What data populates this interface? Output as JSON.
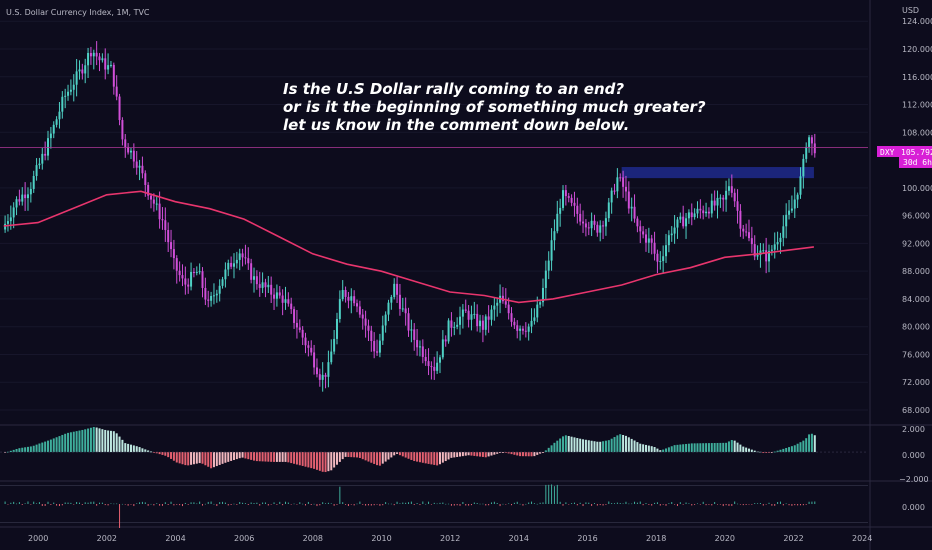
{
  "header": {
    "title": "U.S. Dollar Currency Index, 1M, TVC"
  },
  "annotation": {
    "lines": [
      "Is the U.S Dollar rally coming to an end?",
      "or is it the beginning of something much greater?",
      "let us know in the comment down below."
    ]
  },
  "price_axis": {
    "unit": "USD",
    "ticks": [
      "124.000",
      "120.000",
      "116.000",
      "112.000",
      "108.000",
      "100.000",
      "96.000",
      "92.000",
      "88.000",
      "84.000",
      "80.000",
      "76.000",
      "72.000",
      "68.000"
    ]
  },
  "time_axis": {
    "ticks": [
      "2000",
      "2002",
      "2004",
      "2006",
      "2008",
      "2010",
      "2012",
      "2014",
      "2016",
      "2018",
      "2020",
      "2022",
      "2024"
    ]
  },
  "last_price": {
    "symbol": "DXY",
    "value": "105.792",
    "countdown": "30d 6h"
  },
  "osc1": {
    "ticks": [
      "2.000",
      "0.000",
      "−2.000"
    ]
  },
  "osc2": {
    "ticks": [
      "0.000"
    ]
  },
  "colors": {
    "background": "#0d0c1d",
    "up": "#4fd1c5",
    "down": "#d14fd8",
    "ma": "#e8356d",
    "zone": "#1e2a8c",
    "hist_pos": "#3fae9c",
    "hist_neg": "#e26070",
    "hline": "#b0389a"
  },
  "chart_data": {
    "type": "candlestick",
    "symbol": "DXY",
    "timeframe": "1M",
    "x_range": [
      1999,
      2022.6
    ],
    "y_range": [
      67,
      125
    ],
    "last_close": 105.792,
    "anchors": [
      [
        1999.0,
        94
      ],
      [
        1999.4,
        98
      ],
      [
        1999.8,
        100
      ],
      [
        2000.3,
        106
      ],
      [
        2000.8,
        113
      ],
      [
        2001.3,
        117
      ],
      [
        2001.6,
        120
      ],
      [
        2001.9,
        118
      ],
      [
        2002.2,
        117
      ],
      [
        2002.5,
        107
      ],
      [
        2002.9,
        104
      ],
      [
        2003.3,
        99
      ],
      [
        2003.7,
        95
      ],
      [
        2004.0,
        89
      ],
      [
        2004.3,
        86
      ],
      [
        2004.7,
        88
      ],
      [
        2005.0,
        83
      ],
      [
        2005.4,
        87
      ],
      [
        2005.9,
        91
      ],
      [
        2006.3,
        87
      ],
      [
        2006.8,
        85
      ],
      [
        2007.2,
        84
      ],
      [
        2007.6,
        80
      ],
      [
        2008.0,
        76
      ],
      [
        2008.3,
        72.5
      ],
      [
        2008.5,
        74
      ],
      [
        2008.9,
        85
      ],
      [
        2009.3,
        84
      ],
      [
        2009.9,
        76
      ],
      [
        2010.4,
        86
      ],
      [
        2010.9,
        79
      ],
      [
        2011.3,
        76
      ],
      [
        2011.6,
        74
      ],
      [
        2012.0,
        80
      ],
      [
        2012.5,
        82
      ],
      [
        2013.0,
        80
      ],
      [
        2013.5,
        84
      ],
      [
        2014.0,
        80
      ],
      [
        2014.4,
        80
      ],
      [
        2014.7,
        84
      ],
      [
        2015.0,
        92
      ],
      [
        2015.3,
        99
      ],
      [
        2015.8,
        96
      ],
      [
        2016.3,
        94
      ],
      [
        2016.6,
        96
      ],
      [
        2016.9,
        101.5
      ],
      [
        2017.1,
        100
      ],
      [
        2017.5,
        94
      ],
      [
        2017.9,
        92
      ],
      [
        2018.1,
        89
      ],
      [
        2018.5,
        94
      ],
      [
        2019.0,
        96
      ],
      [
        2019.5,
        97
      ],
      [
        2020.0,
        98
      ],
      [
        2020.2,
        101
      ],
      [
        2020.5,
        95
      ],
      [
        2020.9,
        91
      ],
      [
        2021.3,
        90
      ],
      [
        2021.7,
        94
      ],
      [
        2022.0,
        97
      ],
      [
        2022.3,
        102
      ],
      [
        2022.45,
        108
      ],
      [
        2022.6,
        105.8
      ]
    ],
    "moving_average": [
      [
        1999,
        94.5
      ],
      [
        2000,
        95
      ],
      [
        2001,
        97
      ],
      [
        2002,
        99
      ],
      [
        2003,
        99.5
      ],
      [
        2004,
        98
      ],
      [
        2005,
        97
      ],
      [
        2006,
        95.5
      ],
      [
        2007,
        93
      ],
      [
        2008,
        90.5
      ],
      [
        2009,
        89
      ],
      [
        2010,
        88
      ],
      [
        2011,
        86.5
      ],
      [
        2012,
        85
      ],
      [
        2013,
        84.5
      ],
      [
        2014,
        83.5
      ],
      [
        2015,
        84
      ],
      [
        2016,
        85
      ],
      [
        2017,
        86
      ],
      [
        2018,
        87.5
      ],
      [
        2019,
        88.5
      ],
      [
        2020,
        90
      ],
      [
        2021,
        90.5
      ],
      [
        2022.6,
        91.5
      ]
    ],
    "resistance_zone": {
      "x": [
        2017.0,
        2022.6
      ],
      "y": [
        101.4,
        103.0
      ]
    },
    "osc1_range": [
      -2.8,
      2.6
    ],
    "osc2_range": [
      -1.5,
      1.5
    ]
  }
}
